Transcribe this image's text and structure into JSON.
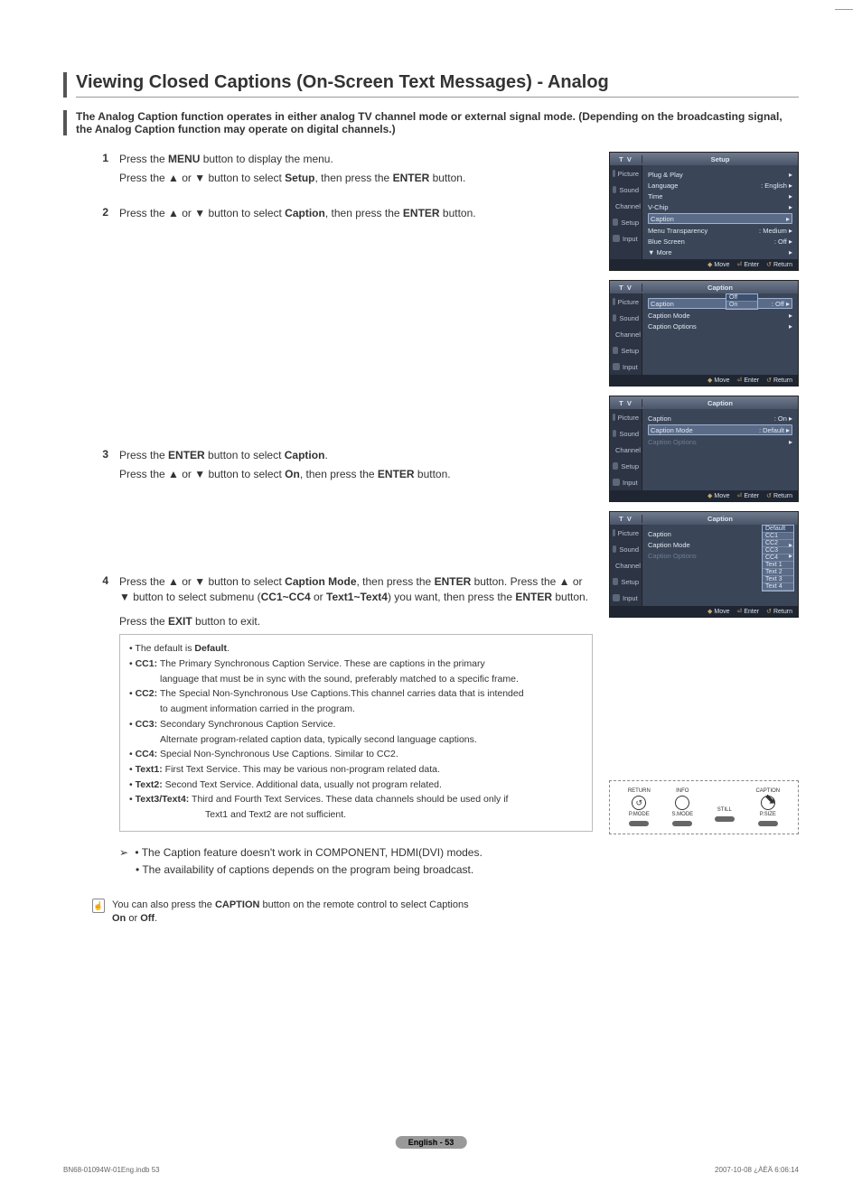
{
  "title": "Viewing Closed Captions (On-Screen Text Messages) - Analog",
  "intro": "The Analog Caption function operates in either analog TV channel mode or external signal mode. (Depending on the broadcasting signal, the Analog Caption function may operate on digital channels.)",
  "steps": {
    "s1": {
      "num": "1",
      "l1a": "Press the ",
      "l1b": "MENU",
      "l1c": " button to display the menu.",
      "l2a": "Press the ▲ or ▼ button to select ",
      "l2b": "Setup",
      "l2c": ", then press the ",
      "l2d": "ENTER",
      "l2e": " button."
    },
    "s2": {
      "num": "2",
      "l1a": "Press the ▲ or ▼ button to select ",
      "l1b": "Caption",
      "l1c": ", then press the ",
      "l1d": "ENTER",
      "l1e": " button."
    },
    "s3": {
      "num": "3",
      "l1a": "Press the ",
      "l1b": "ENTER",
      "l1c": " button to select ",
      "l1d": "Caption",
      "l1e": ".",
      "l2a": "Press the ▲ or ▼ button to select ",
      "l2b": "On",
      "l2c": ", then press the ",
      "l2d": "ENTER",
      "l2e": " button."
    },
    "s4": {
      "num": "4",
      "l1a": "Press the ▲ or ▼ button to select ",
      "l1b": "Caption Mode",
      "l1c": ", then press the ",
      "l1d": "ENTER",
      "l2a": " button. Press the ▲ or ▼ button to select submenu (",
      "l2b": "CC1~CC4",
      "l2c": " or ",
      "l2d": "Text1~Text4",
      "l2e": ") you want, then press the ",
      "l2f": "ENTER",
      "l2g": " button.",
      "exit_a": "Press the ",
      "exit_b": "EXIT",
      "exit_c": " button to exit."
    }
  },
  "definitions": {
    "d0a": "The default is ",
    "d0b": "Default",
    "d0c": ".",
    "d1a": "CC1:",
    "d1b": " The Primary Synchronous Caption Service. These are captions in the primary",
    "d1sub": "language that must be in sync with the sound, preferably matched to a specific frame.",
    "d2a": "CC2:",
    "d2b": " The Special Non-Synchronous Use Captions.This channel carries data that is intended",
    "d2sub": "to augment information carried in the program.",
    "d3a": "CC3:",
    "d3b": " Secondary Synchronous Caption Service.",
    "d3sub": "Alternate program-related caption data, typically second language captions.",
    "d4a": "CC4:",
    "d4b": " Special Non-Synchronous Use Captions. Similar to CC2.",
    "d5a": "Text1:",
    "d5b": " First Text Service. This may be various non-program related data.",
    "d6a": "Text2:",
    "d6b": " Second Text Service. Additional data, usually not program related.",
    "d7a": "Text3/Text4:",
    "d7b": " Third and Fourth Text Services. These data channels should be used only if",
    "d7sub": "Text1 and Text2 are not sufficient."
  },
  "notes": {
    "n1": "The Caption feature doesn't work in COMPONENT, HDMI(DVI) modes.",
    "n2": "The availability of captions depends on the program being broadcast."
  },
  "tip": {
    "t1a": "You can also press the ",
    "t1b": "CAPTION",
    "t1c": " button on the remote control to select Captions ",
    "t2a": "On",
    "t2b": " or ",
    "t2c": "Off",
    "t2d": "."
  },
  "osd": {
    "tv_label": "T V",
    "footer_move": "Move",
    "footer_enter": "Enter",
    "footer_return": "Return",
    "side_items": [
      "Picture",
      "Sound",
      "Channel",
      "Setup",
      "Input"
    ],
    "screen1": {
      "title": "Setup",
      "rows": [
        {
          "label": "Plug & Play",
          "value": ""
        },
        {
          "label": "Language",
          "value": ": English"
        },
        {
          "label": "Time",
          "value": ""
        },
        {
          "label": "V-Chip",
          "value": ""
        },
        {
          "label": "Caption",
          "value": "",
          "hl": true
        },
        {
          "label": "Menu Transparency",
          "value": ": Medium"
        },
        {
          "label": "Blue Screen",
          "value": ": Off"
        },
        {
          "label": "▼ More",
          "value": ""
        }
      ]
    },
    "screen2": {
      "title": "Caption",
      "rows": [
        {
          "label": "Caption",
          "value": ": Off",
          "hl": true,
          "dropdown": [
            "Off",
            "On"
          ]
        },
        {
          "label": "Caption Mode",
          "value": ""
        },
        {
          "label": "Caption Options",
          "value": ""
        }
      ]
    },
    "screen3": {
      "title": "Caption",
      "rows": [
        {
          "label": "Caption",
          "value": ": On"
        },
        {
          "label": "Caption Mode",
          "value": ": Default",
          "hl": true
        },
        {
          "label": "Caption Options",
          "value": "",
          "dim": true
        }
      ]
    },
    "screen4": {
      "title": "Caption",
      "rows": [
        {
          "label": "Caption",
          "value": "",
          "dropdown": [
            "Default",
            "CC1",
            "CC2",
            "CC3",
            "CC4",
            "Text 1",
            "Text 2",
            "Text 3",
            "Text 4"
          ]
        },
        {
          "label": "Caption Mode",
          "value": ""
        },
        {
          "label": "Caption Options",
          "value": "",
          "dim": true
        }
      ]
    }
  },
  "remote": {
    "labels_top": [
      "RETURN",
      "INFO",
      "CAPTION"
    ],
    "labels_bottom": [
      "P.MODE",
      "S.MODE",
      "STILL",
      "P.SIZE"
    ]
  },
  "page_label": "English - 53",
  "footer_left": "BN68-01094W-01Eng.indb   53",
  "footer_right": "2007-10-08   ¿ÀÈÄ 6:06:14",
  "colors": {
    "osd_bg": "#3a4558",
    "osd_header_grad_top": "#6f7a8d",
    "osd_header_grad_bot": "#4a556a",
    "osd_side_bg": "#2d3545",
    "osd_text": "#dfe7f0",
    "osd_highlight_bg": "#5a6b88",
    "osd_highlight_border": "#9fb3d0",
    "osd_footer_bg": "#1f2632",
    "osd_footer_icon": "#c7a86b",
    "page_label_bg": "#999999"
  }
}
